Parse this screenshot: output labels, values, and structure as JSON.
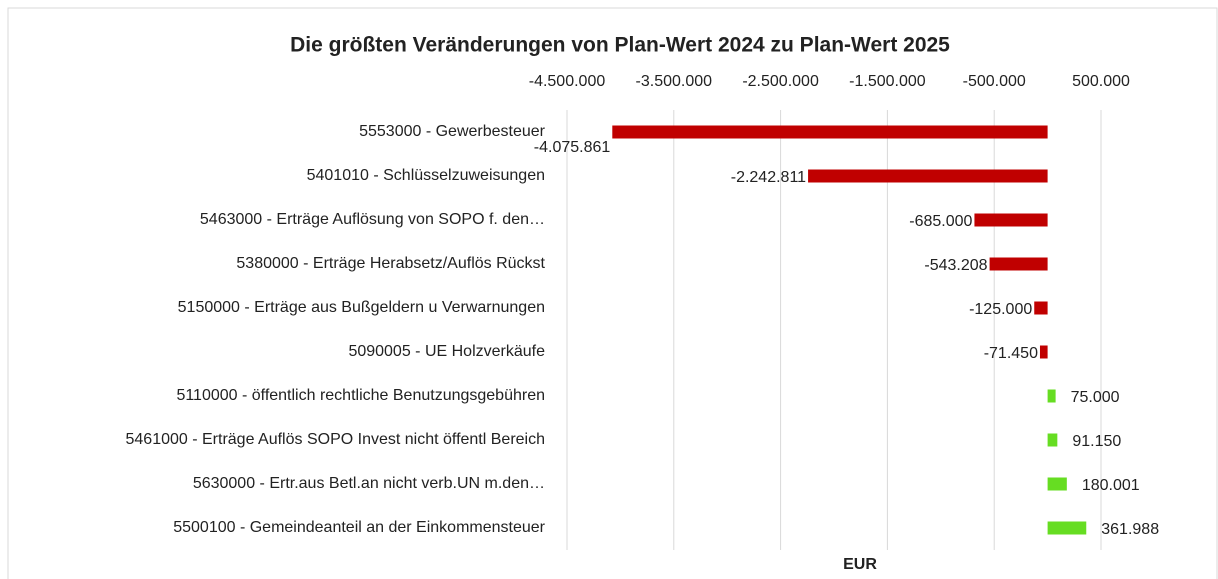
{
  "chart_data": {
    "type": "hbar",
    "title": "Die größten Veränderungen von Plan-Wert 2024 zu Plan-Wert 2025",
    "x_label": "EUR",
    "categories": [
      "5553000 - Gewerbesteuer",
      "5401010 - Schlüsselzuweisungen",
      "5463000 - Erträge Auflösung von  SOPO f. den…",
      "5380000 - Erträge Herabsetz/Auflös Rückst",
      "5150000 - Erträge aus Bußgeldern u Verwarnungen",
      "5090005 - UE Holzverkäufe",
      "5110000 - öffentlich rechtliche Benutzungsgebühren",
      "5461000 - Erträge Auflös SOPO Invest nicht öffentl Bereich",
      "5630000 - Ertr.aus Betl.an nicht verb.UN m.den…",
      "5500100 - Gemeindeanteil an der Einkommensteuer"
    ],
    "values": [
      -4075861,
      -2242811,
      -685000,
      -543208,
      -125000,
      -71450,
      75000,
      91150,
      180001,
      361988
    ],
    "value_labels": [
      "-4.075.861",
      "-2.242.811",
      "-685.000",
      "-543.208",
      "-125.000",
      "-71.450",
      "75.000",
      "91.150",
      "180.001",
      "361.988"
    ],
    "negative_color": "#c00000",
    "positive_color": "#66dd22",
    "xlim": [
      -4500000,
      500000
    ],
    "xticks": [
      {
        "value": -4500000,
        "label": "-4.500.000"
      },
      {
        "value": -3500000,
        "label": "-3.500.000"
      },
      {
        "value": -2500000,
        "label": "-2.500.000"
      },
      {
        "value": -1500000,
        "label": "-1.500.000"
      },
      {
        "value": -500000,
        "label": "-500.000"
      },
      {
        "value": 500000,
        "label": "500.000"
      }
    ],
    "grid": true
  }
}
